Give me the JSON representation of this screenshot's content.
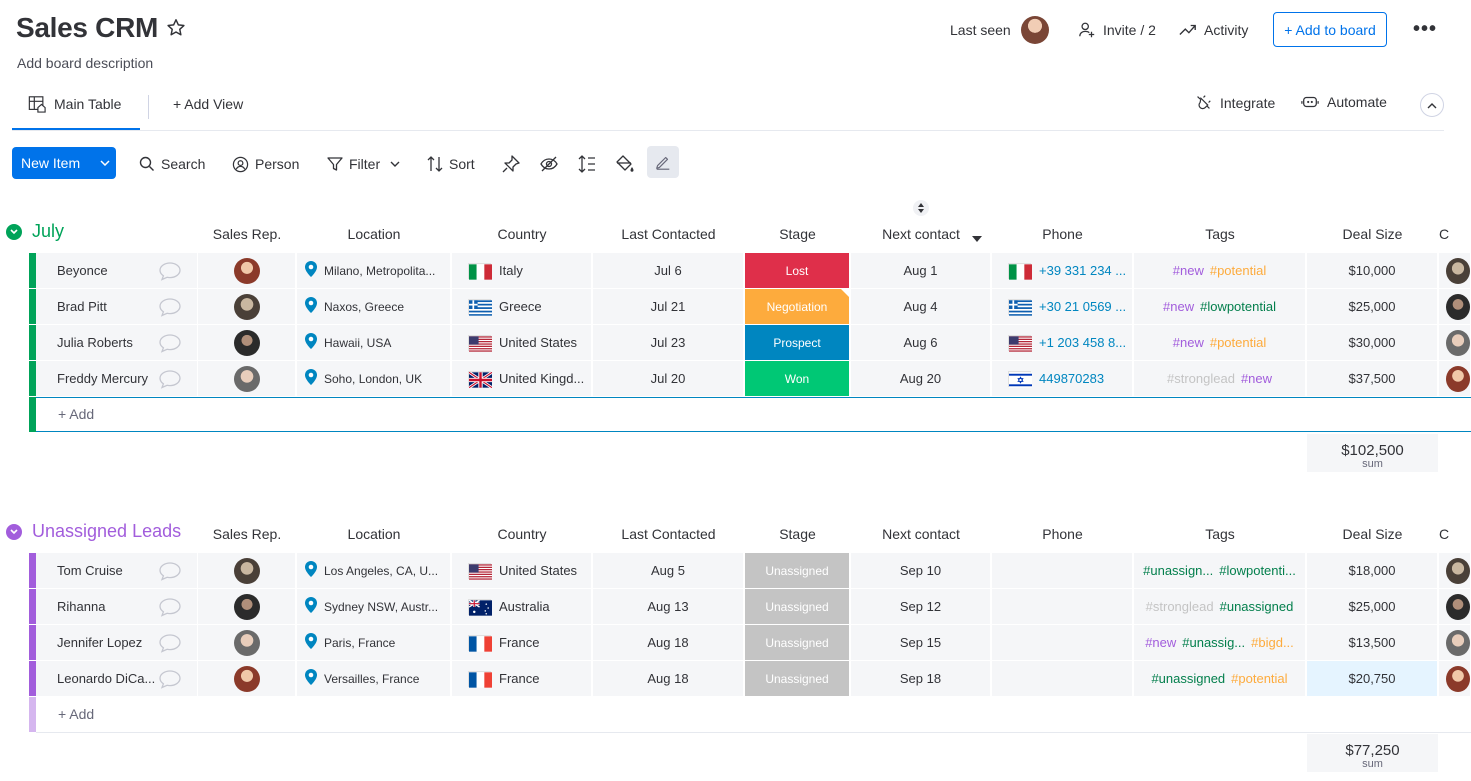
{
  "header": {
    "title": "Sales CRM",
    "description": "Add board description",
    "last_seen": "Last seen",
    "invite": "Invite / 2",
    "activity": "Activity",
    "add_to_board": "+ Add to board",
    "more": "•••"
  },
  "views": {
    "main_table": "Main Table",
    "add_view": "+ Add View",
    "integrate": "Integrate",
    "automate": "Automate"
  },
  "toolbar": {
    "new_item": "New Item",
    "search": "Search",
    "person": "Person",
    "filter": "Filter",
    "sort": "Sort"
  },
  "columns": {
    "sales_rep": "Sales Rep.",
    "location": "Location",
    "country": "Country",
    "last_contacted": "Last Contacted",
    "stage": "Stage",
    "next_contact": "Next contact",
    "phone": "Phone",
    "tags": "Tags",
    "deal_size": "Deal Size",
    "overflow": "C"
  },
  "colors": {
    "accent": "#0073ea",
    "july": "#00a359",
    "unassigned": "#a25ddc",
    "lost": "#df2f4a",
    "negotiation": "#fdab3d",
    "prospect": "#0086c0",
    "won": "#00c875",
    "unassigned_stage": "#c4c4c4",
    "tag_new": "#a25ddc",
    "tag_potential": "#fdab3d",
    "tag_lowpotential": "#037f4c",
    "tag_stronglead": "#c4c4c4",
    "tag_unassigned": "#037f4c",
    "tag_bigdeal": "#fdab3d"
  },
  "groups": [
    {
      "title": "July",
      "add": "+ Add",
      "sum": "$102,500",
      "sum_label": "sum",
      "rows": [
        {
          "name": "Beyonce",
          "location": "Milano, Metropolita...",
          "country": "Italy",
          "flag": "it",
          "last_contacted": "Jul 6",
          "stage": "Lost",
          "stage_color": "#df2f4a",
          "next_contact": "Aug 1",
          "phone": "+39 331 234 ...",
          "phone_flag": "it",
          "tags": [
            {
              "t": "#new",
              "c": "#a25ddc"
            },
            {
              "t": "#potential",
              "c": "#fdab3d"
            }
          ],
          "deal": "$10,000"
        },
        {
          "name": "Brad Pitt",
          "location": "Naxos, Greece",
          "country": "Greece",
          "flag": "gr",
          "last_contacted": "Jul 21",
          "stage": "Negotiation",
          "stage_color": "#fdab3d",
          "next_contact": "Aug 4",
          "phone": "+30 21 0569 ...",
          "phone_flag": "gr",
          "tags": [
            {
              "t": "#new",
              "c": "#a25ddc"
            },
            {
              "t": "#lowpotential",
              "c": "#037f4c"
            }
          ],
          "deal": "$25,000"
        },
        {
          "name": "Julia Roberts",
          "location": "Hawaii, USA",
          "country": "United States",
          "flag": "us",
          "last_contacted": "Jul 23",
          "stage": "Prospect",
          "stage_color": "#0086c0",
          "next_contact": "Aug 6",
          "phone": "+1 203 458 8...",
          "phone_flag": "us",
          "tags": [
            {
              "t": "#new",
              "c": "#a25ddc"
            },
            {
              "t": "#potential",
              "c": "#fdab3d"
            }
          ],
          "deal": "$30,000"
        },
        {
          "name": "Freddy Mercury",
          "location": "Soho, London, UK",
          "country": "United Kingd...",
          "flag": "gb",
          "last_contacted": "Jul 20",
          "stage": "Won",
          "stage_color": "#00c875",
          "next_contact": "Aug 20",
          "phone": "449870283",
          "phone_flag": "il",
          "tags": [
            {
              "t": "#stronglead",
              "c": "#c4c4c4"
            },
            {
              "t": "#new",
              "c": "#a25ddc"
            }
          ],
          "deal": "$37,500"
        }
      ]
    },
    {
      "title": "Unassigned Leads",
      "add": "+ Add",
      "sum": "$77,250",
      "sum_label": "sum",
      "rows": [
        {
          "name": "Tom Cruise",
          "location": "Los Angeles, CA, U...",
          "country": "United States",
          "flag": "us",
          "last_contacted": "Aug 5",
          "stage": "Unassigned",
          "stage_color": "#c4c4c4",
          "next_contact": "Sep 10",
          "phone": "",
          "phone_flag": "",
          "tags": [
            {
              "t": "#unassign...",
              "c": "#037f4c"
            },
            {
              "t": "#lowpotenti...",
              "c": "#037f4c"
            }
          ],
          "deal": "$18,000"
        },
        {
          "name": "Rihanna",
          "location": "Sydney NSW, Austr...",
          "country": "Australia",
          "flag": "au",
          "last_contacted": "Aug 13",
          "stage": "Unassigned",
          "stage_color": "#c4c4c4",
          "next_contact": "Sep 12",
          "phone": "",
          "phone_flag": "",
          "tags": [
            {
              "t": "#stronglead",
              "c": "#c4c4c4"
            },
            {
              "t": "#unassigned",
              "c": "#037f4c"
            }
          ],
          "deal": "$25,000"
        },
        {
          "name": "Jennifer Lopez",
          "location": "Paris, France",
          "country": "France",
          "flag": "fr",
          "last_contacted": "Aug 18",
          "stage": "Unassigned",
          "stage_color": "#c4c4c4",
          "next_contact": "Sep 15",
          "phone": "",
          "phone_flag": "",
          "tags": [
            {
              "t": "#new",
              "c": "#a25ddc"
            },
            {
              "t": "#unassig...",
              "c": "#037f4c"
            },
            {
              "t": "#bigd...",
              "c": "#fdab3d"
            }
          ],
          "deal": "$13,500"
        },
        {
          "name": "Leonardo DiCa...",
          "location": "Versailles, France",
          "country": "France",
          "flag": "fr",
          "last_contacted": "Aug 18",
          "stage": "Unassigned",
          "stage_color": "#c4c4c4",
          "next_contact": "Sep 18",
          "phone": "",
          "phone_flag": "",
          "tags": [
            {
              "t": "#unassigned",
              "c": "#037f4c"
            },
            {
              "t": "#potential",
              "c": "#fdab3d"
            }
          ],
          "deal": "$20,750"
        }
      ]
    }
  ]
}
